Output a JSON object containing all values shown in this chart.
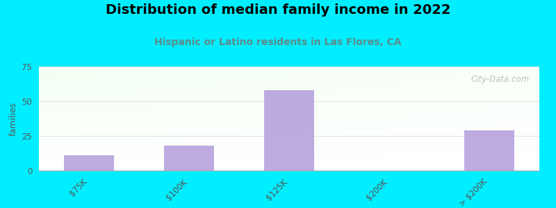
{
  "title": "Distribution of median family income in 2022",
  "subtitle": "Hispanic or Latino residents in Las Flores, CA",
  "categories": [
    "$75K",
    "$100K",
    "$125K",
    "$200K",
    "> $200K"
  ],
  "values": [
    11,
    18,
    58,
    0,
    29
  ],
  "bar_color": "#b39ddb",
  "bar_alpha": 0.85,
  "ylim": [
    0,
    75
  ],
  "yticks": [
    0,
    25,
    50,
    75
  ],
  "ylabel": "families",
  "background_color": "#00eeff",
  "title_fontsize": 14,
  "subtitle_fontsize": 10,
  "subtitle_color": "#5c8a8a",
  "watermark": "City-Data.com",
  "bar_width": 0.5,
  "tick_color": "#555555",
  "tick_fontsize": 8.5,
  "ylabel_fontsize": 9,
  "grid_color": "#cccccc",
  "grid_alpha": 0.6
}
